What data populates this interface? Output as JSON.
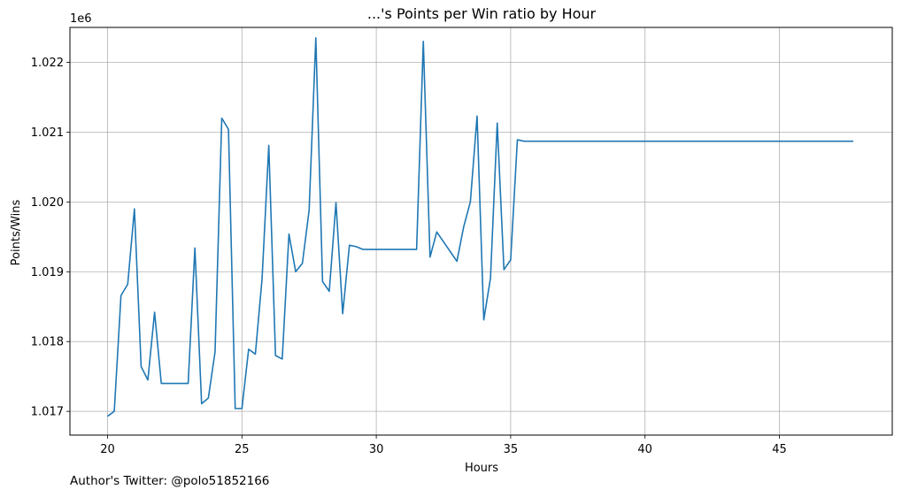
{
  "chart_data": {
    "type": "line",
    "title": "...'s Points per Win ratio by Hour",
    "xlabel": "Hours",
    "ylabel": "Points/Wins",
    "y_offset_label": "1e6",
    "xlim": [
      18.6,
      49.2
    ],
    "ylim": [
      1016.66,
      1022.5
    ],
    "xticks": [
      20,
      25,
      30,
      35,
      40,
      45
    ],
    "yticks": [
      1017,
      1018,
      1019,
      1020,
      1021,
      1022
    ],
    "ytick_labels": [
      "1.017",
      "1.018",
      "1.019",
      "1.020",
      "1.021",
      "1.022"
    ],
    "grid": true,
    "line_color": "#1f77b4",
    "series": [
      {
        "x": [
          20.0,
          20.25,
          20.5,
          20.75,
          21.0,
          21.25,
          21.5,
          21.75,
          22.0,
          22.25,
          22.5,
          22.75,
          23.0,
          23.25,
          23.5,
          23.75,
          24.0,
          24.25,
          24.5,
          24.75,
          25.0,
          25.25,
          25.5,
          25.75,
          26.0,
          26.25,
          26.5,
          26.75,
          27.0,
          27.25,
          27.5,
          27.75,
          28.0,
          28.25,
          28.5,
          28.75,
          29.0,
          29.25,
          29.5,
          29.75,
          30.0,
          30.25,
          30.5,
          30.75,
          31.0,
          31.25,
          31.5,
          31.75,
          32.0,
          32.25,
          32.5,
          32.75,
          33.0,
          33.25,
          33.5,
          33.75,
          34.0,
          34.25,
          34.5,
          34.75,
          35.0,
          35.25,
          35.5,
          36.0,
          37.0,
          38.0,
          39.0,
          40.0,
          41.0,
          42.0,
          43.0,
          44.0,
          45.0,
          46.0,
          47.0,
          47.75
        ],
        "y": [
          1016.93,
          1017.0,
          1018.66,
          1018.82,
          1019.9,
          1017.64,
          1017.45,
          1018.42,
          1017.4,
          1017.4,
          1017.4,
          1017.4,
          1017.4,
          1019.34,
          1017.11,
          1017.19,
          1017.85,
          1021.2,
          1021.04,
          1017.04,
          1017.04,
          1017.89,
          1017.82,
          1018.9,
          1020.81,
          1017.8,
          1017.75,
          1019.54,
          1019.0,
          1019.12,
          1019.88,
          1022.35,
          1018.86,
          1018.72,
          1019.99,
          1018.4,
          1019.38,
          1019.36,
          1019.32,
          1019.32,
          1019.32,
          1019.32,
          1019.32,
          1019.32,
          1019.32,
          1019.32,
          1019.32,
          1022.3,
          1019.21,
          1019.57,
          1019.43,
          1019.29,
          1019.15,
          1019.64,
          1020.0,
          1021.23,
          1018.31,
          1018.91,
          1021.13,
          1019.03,
          1019.17,
          1020.89,
          1020.87,
          1020.87,
          1020.87,
          1020.87,
          1020.87,
          1020.87,
          1020.87,
          1020.87,
          1020.87,
          1020.87,
          1020.87,
          1020.87,
          1020.87,
          1020.87
        ]
      }
    ]
  },
  "footer": {
    "author": "Author's Twitter: @polo51852166"
  }
}
